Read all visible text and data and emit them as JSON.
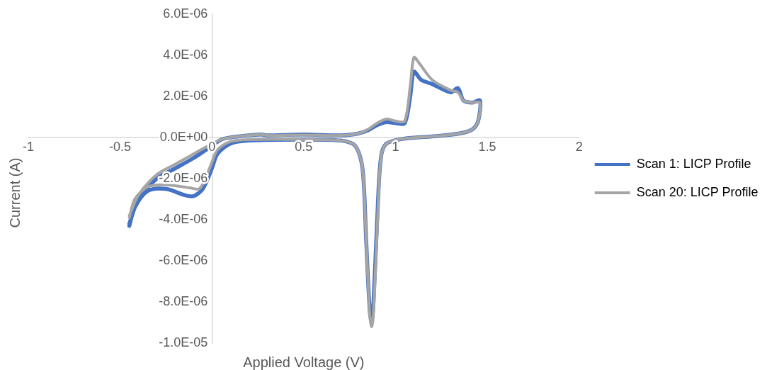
{
  "chart_data": {
    "type": "line",
    "xlabel": "Applied Voltage (V)",
    "ylabel": "Current (A)",
    "xlim": [
      -1,
      2
    ],
    "xticks": [
      -1,
      -0.5,
      0,
      0.5,
      1,
      1.5,
      2
    ],
    "ylim": [
      -1e-05,
      6e-06
    ],
    "yticks": [
      {
        "value": -1e-05,
        "label": "-1.0E-05"
      },
      {
        "value": -8e-06,
        "label": "-8.0E-06"
      },
      {
        "value": -6e-06,
        "label": "-6.0E-06"
      },
      {
        "value": -4e-06,
        "label": "-4.0E-06"
      },
      {
        "value": -2e-06,
        "label": "-2.0E-06"
      },
      {
        "value": 0,
        "label": "0.0E+00"
      },
      {
        "value": 2e-06,
        "label": "2.0E-06"
      },
      {
        "value": 4e-06,
        "label": "4.0E-06"
      },
      {
        "value": 6e-06,
        "label": "6.0E-06"
      }
    ],
    "grid": false,
    "legend": "right",
    "marker": "none",
    "line_style": "solid",
    "series": [
      {
        "name": "Scan 1: LICP Profile",
        "color": "#4472c4",
        "x": [
          -0.45,
          -0.4,
          -0.3,
          -0.2,
          -0.1,
          0,
          0.05,
          0.1,
          0.2,
          0.27,
          0.3,
          0.5,
          0.7,
          0.8,
          0.85,
          0.9,
          0.95,
          1.0,
          1.05,
          1.08,
          1.1,
          1.14,
          1.2,
          1.3,
          1.34,
          1.37,
          1.42,
          1.46,
          1.45,
          1.42,
          1.35,
          1.2,
          1.05,
          0.95,
          0.92,
          0.9,
          0.88,
          0.87,
          0.86,
          0.84,
          0.82,
          0.78,
          0.7,
          0.5,
          0.2,
          0.1,
          0.03,
          0,
          -0.05,
          -0.1,
          -0.15,
          -0.25,
          -0.35,
          -0.42,
          -0.45
        ],
        "values": [
          -4.2e-06,
          -3e-06,
          -2e-06,
          -1.5e-06,
          -1e-06,
          -4e-07,
          -1e-07,
          0,
          1e-07,
          1.5e-07,
          1e-07,
          1.5e-07,
          1e-07,
          2e-07,
          3.5e-07,
          6e-07,
          7.5e-07,
          7e-07,
          7e-07,
          2e-06,
          3.2e-06,
          2.8e-06,
          2.6e-06,
          2.2e-06,
          2.4e-06,
          1.8e-06,
          1.7e-06,
          1.8e-06,
          8e-07,
          4e-07,
          2e-07,
          5e-08,
          -5e-08,
          -3e-07,
          -1e-06,
          -4e-06,
          -8e-06,
          -8.9e-06,
          -8.5e-06,
          -5e-06,
          -1.5e-06,
          -4e-07,
          -1.5e-07,
          -1e-07,
          -1.5e-07,
          -3e-07,
          -8e-07,
          -1.5e-06,
          -2.5e-06,
          -2.85e-06,
          -2.8e-06,
          -2.5e-06,
          -2.6e-06,
          -3.4e-06,
          -4.3e-06
        ]
      },
      {
        "name": "Scan 20: LICP Profile",
        "color": "#a5a5a5",
        "x": [
          -0.45,
          -0.4,
          -0.3,
          -0.2,
          -0.1,
          0,
          0.05,
          0.1,
          0.2,
          0.27,
          0.3,
          0.5,
          0.7,
          0.8,
          0.85,
          0.9,
          0.95,
          1.0,
          1.05,
          1.08,
          1.1,
          1.13,
          1.2,
          1.3,
          1.34,
          1.37,
          1.42,
          1.46,
          1.45,
          1.42,
          1.35,
          1.2,
          1.05,
          0.95,
          0.92,
          0.9,
          0.88,
          0.87,
          0.86,
          0.84,
          0.82,
          0.78,
          0.7,
          0.5,
          0.2,
          0.1,
          0.03,
          0,
          -0.04,
          -0.07,
          -0.12,
          -0.25,
          -0.35,
          -0.42,
          -0.45
        ],
        "values": [
          -3.8e-06,
          -2.8e-06,
          -1.8e-06,
          -1.3e-06,
          -8e-07,
          -3e-07,
          -1e-07,
          0,
          1e-07,
          1.5e-07,
          1e-07,
          1.2e-07,
          1e-07,
          2e-07,
          4e-07,
          7e-07,
          9e-07,
          8e-07,
          8e-07,
          2.5e-06,
          3.9e-06,
          3.6e-06,
          2.8e-06,
          2.3e-06,
          2.2e-06,
          1.8e-06,
          1.7e-06,
          1.7e-06,
          8e-07,
          4e-07,
          2e-07,
          5e-08,
          -5e-08,
          -3e-07,
          -1e-06,
          -4.5e-06,
          -8.5e-06,
          -9.2e-06,
          -8.7e-06,
          -5e-06,
          -1.5e-06,
          -4e-07,
          -1.5e-07,
          -1e-07,
          -1e-07,
          -2e-07,
          -6e-07,
          -1.2e-06,
          -2.1e-06,
          -2.5e-06,
          -2.45e-06,
          -2.3e-06,
          -2.4e-06,
          -3e-06,
          -3.9e-06
        ]
      }
    ]
  }
}
